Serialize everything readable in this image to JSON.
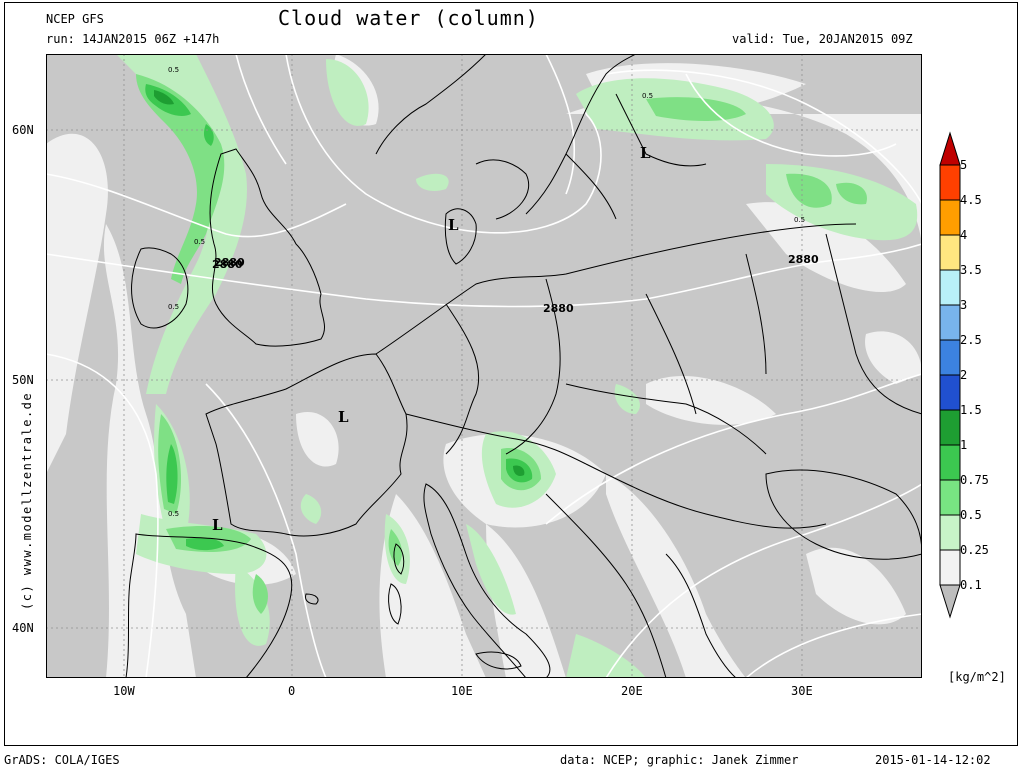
{
  "header": {
    "model": "NCEP GFS",
    "run": "run: 14JAN2015 06Z +147h",
    "title": "Cloud water (column)",
    "valid": "valid: Tue, 20JAN2015 09Z"
  },
  "axes": {
    "lat_ticks": [
      "60N",
      "50N",
      "40N"
    ],
    "lon_ticks": [
      "10W",
      "0",
      "10E",
      "20E",
      "30E"
    ]
  },
  "map": {
    "contour_labels": [
      "2880",
      "2880",
      "2880",
      "2880"
    ],
    "contour_small_labels": [
      "0.5",
      "0.5",
      "0.5",
      "0.5",
      "0.5",
      "0.5"
    ],
    "pressure_lows": [
      "L",
      "L",
      "L",
      "L"
    ]
  },
  "side_text": "(c) www.modellzentrale.de",
  "colorbar": {
    "labels": [
      "5",
      "4.5",
      "4",
      "3.5",
      "3",
      "2.5",
      "2",
      "1.5",
      "1",
      "0.75",
      "0.5",
      "0.25",
      "0.1"
    ],
    "colors": [
      "#c00000",
      "#ff4000",
      "#ff9e00",
      "#ffe680",
      "#b8f0f8",
      "#78b4ec",
      "#3c82e0",
      "#2050d0",
      "#1e9e32",
      "#3cc850",
      "#78e482",
      "#c8f4c8",
      "#f2f2f2"
    ],
    "units": "[kg/m^2]"
  },
  "footer": {
    "left": "GrADS: COLA/IGES",
    "center": "data: NCEP; graphic: Janek Zimmer",
    "right": "2015-01-14-12:02"
  }
}
